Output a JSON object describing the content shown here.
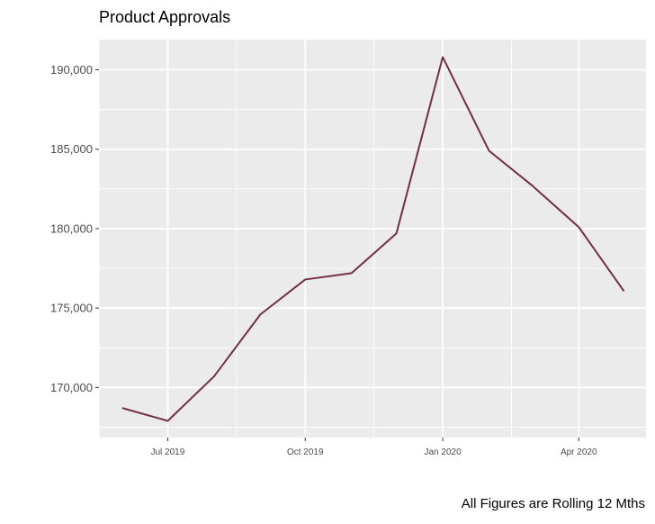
{
  "chart_data": {
    "type": "line",
    "title": "Product Approvals",
    "caption": "All Figures are Rolling 12 Mths",
    "xlabel": "",
    "ylabel": "",
    "x": [
      "2019-06",
      "2019-07",
      "2019-08",
      "2019-09",
      "2019-10",
      "2019-11",
      "2019-12",
      "2020-01",
      "2020-02",
      "2020-03",
      "2020-04",
      "2020-05"
    ],
    "series": [
      {
        "values": [
          168700,
          167900,
          170700,
          174600,
          176800,
          177200,
          179700,
          190800,
          184900,
          182700,
          180100,
          176100
        ],
        "color": "#722f45"
      }
    ],
    "x_ticks": [
      {
        "label": "Jul 2019",
        "value": "2019-07"
      },
      {
        "label": "Oct 2019",
        "value": "2019-10"
      },
      {
        "label": "Jan 2020",
        "value": "2020-01"
      },
      {
        "label": "Apr 2020",
        "value": "2020-04"
      }
    ],
    "y_ticks": [
      {
        "label": "170,000",
        "value": 170000
      },
      {
        "label": "175,000",
        "value": 175000
      },
      {
        "label": "180,000",
        "value": 180000
      },
      {
        "label": "185,000",
        "value": 185000
      },
      {
        "label": "190,000",
        "value": 190000
      }
    ],
    "ylim": [
      166850,
      191900
    ],
    "xlim": [
      "2019-05-16",
      "2020-05-16"
    ],
    "grid": true,
    "panel_background": "#ebebeb",
    "grid_color": "#ffffff"
  }
}
